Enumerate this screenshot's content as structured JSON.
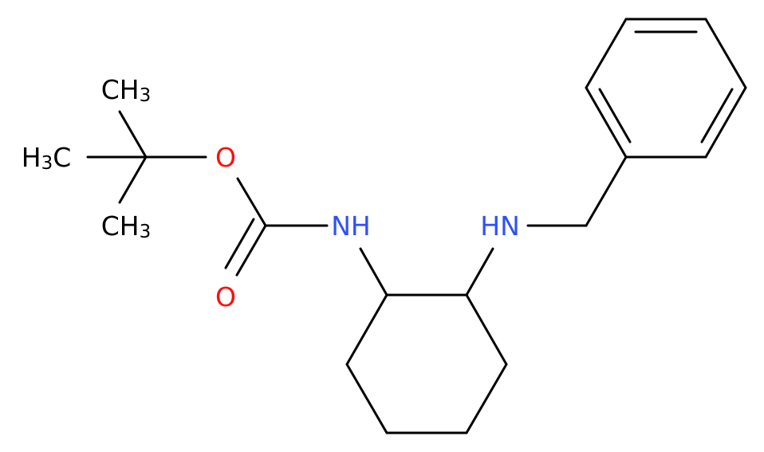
{
  "atoms": [
    {
      "label": "CH3",
      "element": "C"
    },
    {
      "label": "H3C",
      "element": "C"
    },
    {
      "label": "CH3",
      "element": "C"
    },
    {
      "label": "O",
      "element": "O"
    },
    {
      "label": "O",
      "element": "O"
    },
    {
      "label": "NH",
      "element": "N"
    },
    {
      "label": "HN",
      "element": "N"
    }
  ]
}
